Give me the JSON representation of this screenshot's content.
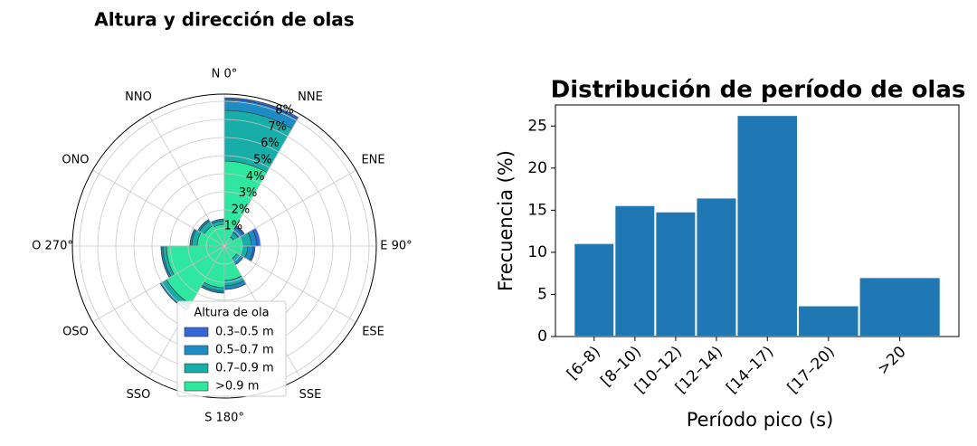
{
  "chart_data": [
    {
      "type": "polar_bar",
      "title": "Altura y dirección de olas",
      "categories": [
        "N 0°",
        "NNE",
        "ENE",
        "E 90°",
        "ESE",
        "SSE",
        "S 180°",
        "SSO",
        "OSO",
        "O 270°",
        "ONO",
        "NNO"
      ],
      "series": [
        {
          "name": "0.3–0.5 m",
          "color": "#3567d6",
          "values": [
            0.1,
            0.1,
            0.2,
            0.1,
            0,
            0,
            0,
            0,
            0,
            0,
            0,
            0
          ]
        },
        {
          "name": "0.5–0.7 m",
          "color": "#1e8cc4",
          "values": [
            0.6,
            0.3,
            0.3,
            0.3,
            0.2,
            0.2,
            0.1,
            0.1,
            0.1,
            0.1,
            0.1,
            0.1
          ]
        },
        {
          "name": "0.7–0.9 m",
          "color": "#17ada8",
          "values": [
            2.8,
            0.3,
            0.5,
            0.3,
            0.2,
            0.3,
            0.2,
            0.3,
            0.2,
            0.3,
            0.3,
            0.2
          ]
        },
        {
          "name": ">0.9 m",
          "color": "#2ee89f",
          "values": [
            4.7,
            0.6,
            1.0,
            1.0,
            0.8,
            1.9,
            2.3,
            3.7,
            3.2,
            1.5,
            1.3,
            1.2
          ]
        }
      ],
      "legend_title": "Altura de ola",
      "legend": "lower center",
      "rlim": [
        0,
        8.4
      ],
      "rticks": [
        {
          "value": 1,
          "label": "1%"
        },
        {
          "value": 2,
          "label": "2%"
        },
        {
          "value": 3,
          "label": "3%"
        },
        {
          "value": 4,
          "label": "4%"
        },
        {
          "value": 5,
          "label": "5%"
        },
        {
          "value": 6,
          "label": "6%"
        },
        {
          "value": 7,
          "label": "7%"
        },
        {
          "value": 8,
          "label": "8%"
        }
      ],
      "grid": true
    },
    {
      "type": "histogram",
      "title": "Distribución de período de olas",
      "xlabel": "Período pico (s)",
      "ylabel": "Frecuencia (%)",
      "bins": [
        6,
        8,
        10,
        12,
        14,
        17,
        20,
        24
      ],
      "values": [
        11.1,
        15.6,
        14.85,
        16.5,
        26.3,
        3.7,
        7.05
      ],
      "color": "#1f77b4",
      "xlim": [
        5.1,
        24.9
      ],
      "xticks": [
        {
          "value": 7,
          "label": "[6–8)"
        },
        {
          "value": 9,
          "label": "[8–10)"
        },
        {
          "value": 11,
          "label": "[10–12)"
        },
        {
          "value": 13,
          "label": "[12–14)"
        },
        {
          "value": 15.5,
          "label": "[14–17)"
        },
        {
          "value": 18.5,
          "label": "[17–20)"
        },
        {
          "value": 22,
          "label": ">20"
        }
      ],
      "ylim": [
        0,
        27.5
      ],
      "yticks": [
        0,
        5,
        10,
        15,
        20,
        25
      ]
    }
  ]
}
